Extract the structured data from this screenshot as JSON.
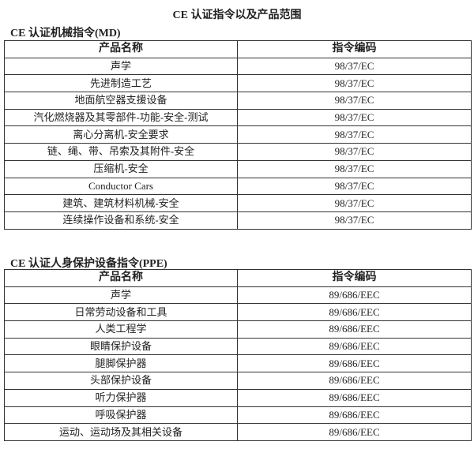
{
  "title": "CE 认证指令以及产品范围",
  "sections": [
    {
      "heading": "CE 认证机械指令(MD)",
      "columns": [
        "产品名称",
        "指令编码"
      ],
      "rows": [
        [
          "声学",
          "98/37/EC"
        ],
        [
          "先进制造工艺",
          "98/37/EC"
        ],
        [
          "地面航空器支援设备",
          "98/37/EC"
        ],
        [
          "汽化燃烧器及其零部件-功能-安全-测试",
          "98/37/EC"
        ],
        [
          "离心分离机-安全要求",
          "98/37/EC"
        ],
        [
          "链、绳、带、吊索及其附件-安全",
          "98/37/EC"
        ],
        [
          "压缩机-安全",
          "98/37/EC"
        ],
        [
          "Conductor Cars",
          "98/37/EC"
        ],
        [
          "建筑、建筑材料机械-安全",
          "98/37/EC"
        ],
        [
          "连续操作设备和系统-安全",
          "98/37/EC"
        ]
      ]
    },
    {
      "heading": "CE 认证人身保护设备指令(PPE)",
      "columns": [
        "产品名称",
        "指令编码"
      ],
      "rows": [
        [
          "声学",
          "89/686/EEC"
        ],
        [
          "日常劳动设备和工具",
          "89/686/EEC"
        ],
        [
          "人类工程学",
          "89/686/EEC"
        ],
        [
          "眼睛保护设备",
          "89/686/EEC"
        ],
        [
          "腿脚保护器",
          "89/686/EEC"
        ],
        [
          "头部保护设备",
          "89/686/EEC"
        ],
        [
          "听力保护器",
          "89/686/EEC"
        ],
        [
          "呼吸保护器",
          "89/686/EEC"
        ],
        [
          "运动、运动场及其相关设备",
          "89/686/EEC"
        ]
      ]
    }
  ]
}
